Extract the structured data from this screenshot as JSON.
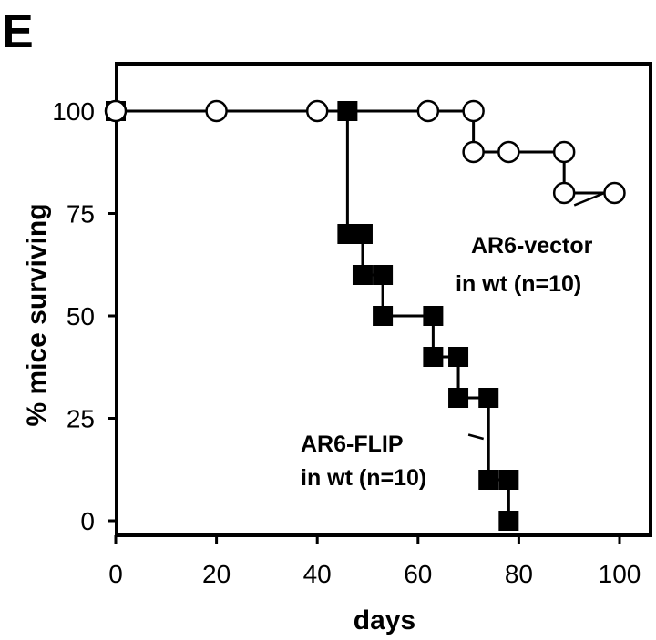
{
  "chart_data": {
    "type": "line",
    "panel_label": "E",
    "xlabel": "days",
    "ylabel": "% mice surviving",
    "xlim": [
      0,
      100
    ],
    "ylim": [
      0,
      100
    ],
    "x_ticks": [
      0,
      20,
      40,
      60,
      80,
      100
    ],
    "y_ticks": [
      0,
      25,
      50,
      75,
      100
    ],
    "grid": false,
    "legend": "none",
    "series": [
      {
        "color": "#000000",
        "marker": "filled-square",
        "step_points": [
          [
            0,
            100
          ],
          [
            46,
            100
          ],
          [
            46,
            70
          ],
          [
            49,
            70
          ],
          [
            49,
            60
          ],
          [
            53,
            60
          ],
          [
            53,
            50
          ],
          [
            63,
            50
          ],
          [
            63,
            40
          ],
          [
            68,
            40
          ],
          [
            68,
            30
          ],
          [
            74,
            30
          ],
          [
            74,
            10
          ],
          [
            78,
            10
          ],
          [
            78,
            0
          ]
        ],
        "markers": [
          [
            0,
            100
          ],
          [
            46,
            100
          ],
          [
            46,
            70
          ],
          [
            49,
            70
          ],
          [
            49,
            60
          ],
          [
            53,
            60
          ],
          [
            53,
            50
          ],
          [
            63,
            50
          ],
          [
            63,
            40
          ],
          [
            68,
            40
          ],
          [
            68,
            30
          ],
          [
            74,
            30
          ],
          [
            74,
            10
          ],
          [
            78,
            10
          ],
          [
            78,
            0
          ]
        ]
      },
      {
        "color": "#000000",
        "marker": "open-circle",
        "step_points": [
          [
            0,
            100
          ],
          [
            71,
            100
          ],
          [
            71,
            90
          ],
          [
            89,
            90
          ],
          [
            89,
            80
          ],
          [
            99,
            80
          ]
        ],
        "markers": [
          [
            0,
            100
          ],
          [
            20,
            100
          ],
          [
            40,
            100
          ],
          [
            62,
            100
          ],
          [
            71,
            100
          ],
          [
            71,
            90
          ],
          [
            78,
            90
          ],
          [
            89,
            90
          ],
          [
            89,
            80
          ],
          [
            99,
            80
          ]
        ]
      }
    ],
    "annotations": [
      {
        "lines": [
          "AR6-vector",
          "in wt (n=10)"
        ],
        "pointer_from": [
          91,
          77
        ],
        "pointer_to": [
          97,
          80
        ]
      },
      {
        "lines": [
          "AR6-FLIP",
          "in wt (n=10)"
        ],
        "pointer_from": [
          70,
          21
        ],
        "pointer_to": [
          73,
          20
        ]
      }
    ]
  }
}
